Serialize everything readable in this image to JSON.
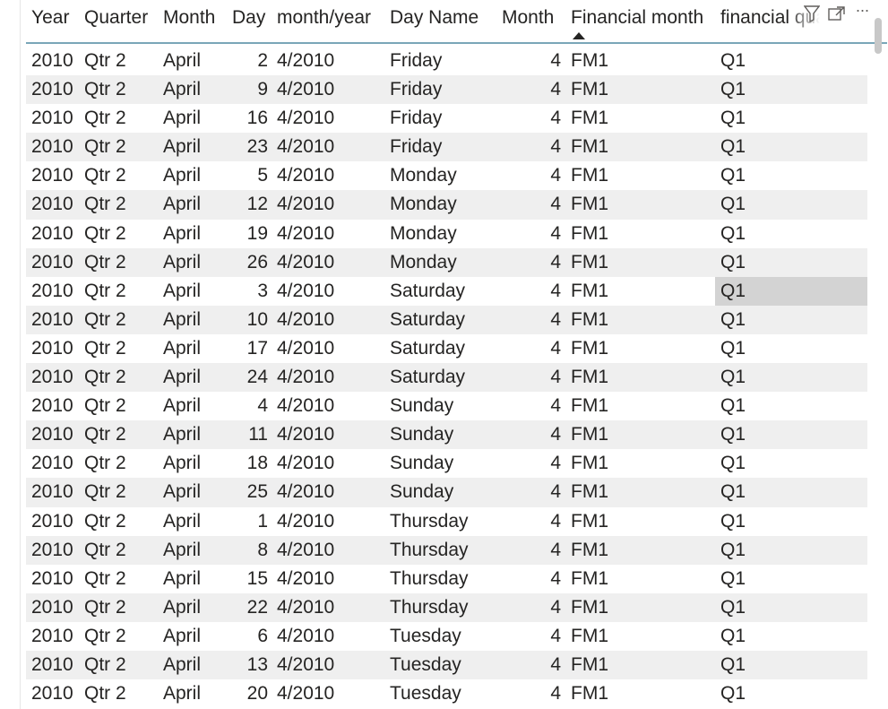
{
  "columns": [
    {
      "label": "Year"
    },
    {
      "label": "Quarter"
    },
    {
      "label": "Month"
    },
    {
      "label": "Day"
    },
    {
      "label": "month/year"
    },
    {
      "label": "Day Name"
    },
    {
      "label": "Month"
    },
    {
      "label": "Financial month"
    },
    {
      "label": "financial quarter"
    }
  ],
  "icons": [
    "filter-icon",
    "focus-mode-icon",
    "more-options-icon"
  ],
  "more_label": "···",
  "rows": [
    [
      "2010",
      "Qtr 2",
      "April",
      "2",
      "4/2010",
      "Friday",
      "4",
      "FM1",
      "Q1"
    ],
    [
      "2010",
      "Qtr 2",
      "April",
      "9",
      "4/2010",
      "Friday",
      "4",
      "FM1",
      "Q1"
    ],
    [
      "2010",
      "Qtr 2",
      "April",
      "16",
      "4/2010",
      "Friday",
      "4",
      "FM1",
      "Q1"
    ],
    [
      "2010",
      "Qtr 2",
      "April",
      "23",
      "4/2010",
      "Friday",
      "4",
      "FM1",
      "Q1"
    ],
    [
      "2010",
      "Qtr 2",
      "April",
      "5",
      "4/2010",
      "Monday",
      "4",
      "FM1",
      "Q1"
    ],
    [
      "2010",
      "Qtr 2",
      "April",
      "12",
      "4/2010",
      "Monday",
      "4",
      "FM1",
      "Q1"
    ],
    [
      "2010",
      "Qtr 2",
      "April",
      "19",
      "4/2010",
      "Monday",
      "4",
      "FM1",
      "Q1"
    ],
    [
      "2010",
      "Qtr 2",
      "April",
      "26",
      "4/2010",
      "Monday",
      "4",
      "FM1",
      "Q1"
    ],
    [
      "2010",
      "Qtr 2",
      "April",
      "3",
      "4/2010",
      "Saturday",
      "4",
      "FM1",
      "Q1"
    ],
    [
      "2010",
      "Qtr 2",
      "April",
      "10",
      "4/2010",
      "Saturday",
      "4",
      "FM1",
      "Q1"
    ],
    [
      "2010",
      "Qtr 2",
      "April",
      "17",
      "4/2010",
      "Saturday",
      "4",
      "FM1",
      "Q1"
    ],
    [
      "2010",
      "Qtr 2",
      "April",
      "24",
      "4/2010",
      "Saturday",
      "4",
      "FM1",
      "Q1"
    ],
    [
      "2010",
      "Qtr 2",
      "April",
      "4",
      "4/2010",
      "Sunday",
      "4",
      "FM1",
      "Q1"
    ],
    [
      "2010",
      "Qtr 2",
      "April",
      "11",
      "4/2010",
      "Sunday",
      "4",
      "FM1",
      "Q1"
    ],
    [
      "2010",
      "Qtr 2",
      "April",
      "18",
      "4/2010",
      "Sunday",
      "4",
      "FM1",
      "Q1"
    ],
    [
      "2010",
      "Qtr 2",
      "April",
      "25",
      "4/2010",
      "Sunday",
      "4",
      "FM1",
      "Q1"
    ],
    [
      "2010",
      "Qtr 2",
      "April",
      "1",
      "4/2010",
      "Thursday",
      "4",
      "FM1",
      "Q1"
    ],
    [
      "2010",
      "Qtr 2",
      "April",
      "8",
      "4/2010",
      "Thursday",
      "4",
      "FM1",
      "Q1"
    ],
    [
      "2010",
      "Qtr 2",
      "April",
      "15",
      "4/2010",
      "Thursday",
      "4",
      "FM1",
      "Q1"
    ],
    [
      "2010",
      "Qtr 2",
      "April",
      "22",
      "4/2010",
      "Thursday",
      "4",
      "FM1",
      "Q1"
    ],
    [
      "2010",
      "Qtr 2",
      "April",
      "6",
      "4/2010",
      "Tuesday",
      "4",
      "FM1",
      "Q1"
    ],
    [
      "2010",
      "Qtr 2",
      "April",
      "13",
      "4/2010",
      "Tuesday",
      "4",
      "FM1",
      "Q1"
    ],
    [
      "2010",
      "Qtr 2",
      "April",
      "20",
      "4/2010",
      "Tuesday",
      "4",
      "FM1",
      "Q1"
    ]
  ],
  "selected_row_index": 8
}
